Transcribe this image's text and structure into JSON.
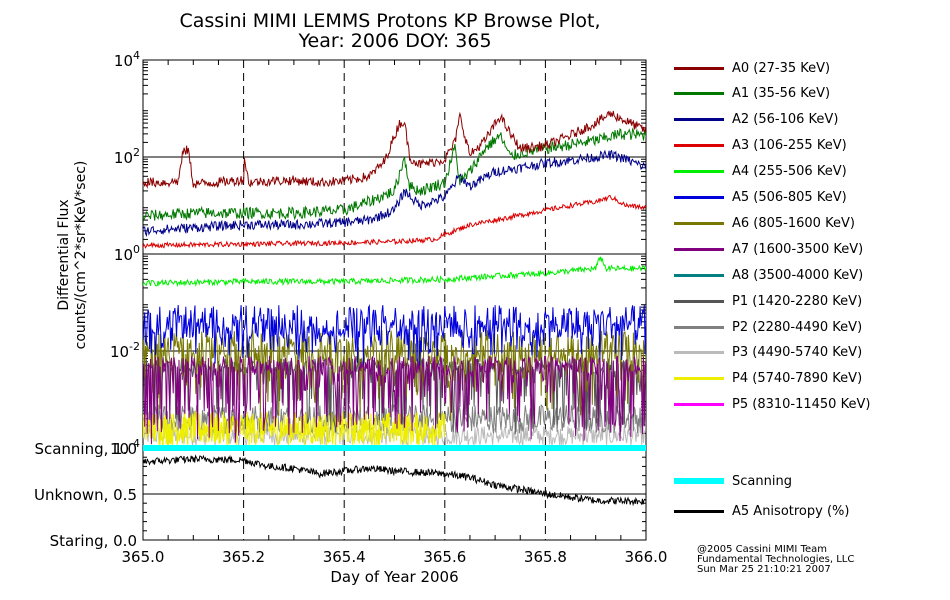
{
  "title_line1": "Cassini MIMI LEMMS Protons KP Browse Plot,",
  "title_line2": "Year: 2006 DOY: 365",
  "credit": [
    "@2005 Cassini MIMI Team",
    "Fundamental Technologies, LLC",
    "Sun Mar 25 21:10:21 2007"
  ],
  "chart_data": [
    {
      "type": "line",
      "title": "Cassini MIMI LEMMS Protons KP Browse Plot, Year: 2006 DOY: 365",
      "xlabel": "",
      "ylabel": [
        "Differential Flux",
        "counts/(cm^2*sr*KeV*sec)"
      ],
      "yscale": "log",
      "xlim": [
        365.0,
        366.0
      ],
      "ylim": [
        0.0001,
        10000
      ],
      "ytick_labels": [
        {
          "value": 10000,
          "base": "10",
          "exp": "4"
        },
        {
          "value": 100,
          "base": "10",
          "exp": "2"
        },
        {
          "value": 1,
          "base": "10",
          "exp": "0"
        },
        {
          "value": 0.01,
          "base": "10",
          "exp": "-2"
        },
        {
          "value": 0.0001,
          "base": "10",
          "exp": "-4"
        }
      ],
      "series": [
        {
          "name": "A0 (27-35 KeV)",
          "color": "#8b0000",
          "x": [
            365.0,
            365.05,
            365.07,
            365.08,
            365.09,
            365.1,
            365.15,
            365.2,
            365.2,
            365.21,
            365.25,
            365.3,
            365.35,
            365.4,
            365.45,
            365.48,
            365.51,
            365.52,
            365.53,
            365.55,
            365.58,
            365.6,
            365.62,
            365.63,
            365.65,
            365.68,
            365.71,
            365.73,
            365.75,
            365.8,
            365.85,
            365.9,
            365.93,
            365.96,
            366.0
          ],
          "values": [
            30,
            30,
            32,
            130,
            140,
            28,
            30,
            34,
            120,
            30,
            32,
            33,
            30,
            32,
            40,
            80,
            500,
            520,
            100,
            70,
            80,
            90,
            200,
            700,
            110,
            220,
            700,
            300,
            150,
            170,
            280,
            500,
            800,
            550,
            350
          ],
          "noise": 0.1
        },
        {
          "name": "A1 (35-56 KeV)",
          "color": "#007800",
          "x": [
            365.0,
            365.1,
            365.2,
            365.3,
            365.4,
            365.45,
            365.5,
            365.52,
            365.53,
            365.55,
            365.6,
            365.62,
            365.63,
            365.65,
            365.68,
            365.71,
            365.73,
            365.75,
            365.8,
            365.85,
            365.9,
            365.95,
            366.0
          ],
          "values": [
            6,
            7,
            7,
            7,
            8,
            12,
            20,
            100,
            25,
            20,
            30,
            160,
            30,
            50,
            150,
            280,
            100,
            120,
            150,
            180,
            220,
            300,
            280
          ],
          "noise": 0.12
        },
        {
          "name": "A2 (56-106 KeV)",
          "color": "#00008b",
          "x": [
            365.0,
            365.1,
            365.2,
            365.3,
            365.4,
            365.45,
            365.5,
            365.52,
            365.55,
            365.6,
            365.63,
            365.65,
            365.7,
            365.75,
            365.8,
            365.85,
            365.9,
            365.93,
            365.96,
            366.0
          ],
          "values": [
            3,
            3.5,
            4,
            4,
            4.5,
            5,
            8,
            20,
            10,
            15,
            40,
            25,
            50,
            60,
            75,
            85,
            100,
            110,
            90,
            60
          ],
          "noise": 0.1
        },
        {
          "name": "A3 (106-255 KeV)",
          "color": "#dc0000",
          "x": [
            365.0,
            365.2,
            365.4,
            365.5,
            365.58,
            365.6,
            365.65,
            365.7,
            365.8,
            365.85,
            365.9,
            365.93,
            365.96,
            366.0
          ],
          "values": [
            1.5,
            1.6,
            1.7,
            1.8,
            2.0,
            2.5,
            4,
            5,
            8,
            10,
            12,
            15,
            10,
            9
          ],
          "noise": 0.05
        },
        {
          "name": "A4 (255-506 KeV)",
          "color": "#00ee00",
          "x": [
            365.0,
            365.2,
            365.4,
            365.6,
            365.7,
            365.8,
            365.9,
            365.91,
            365.92,
            366.0
          ],
          "values": [
            0.25,
            0.27,
            0.27,
            0.3,
            0.35,
            0.4,
            0.5,
            0.9,
            0.5,
            0.5
          ],
          "noise": 0.06
        },
        {
          "name": "A5 (506-805 KeV)",
          "color": "#0000dc",
          "x": [
            365.0,
            366.0
          ],
          "values": [
            0.04,
            0.04
          ],
          "spike_down": 0.6,
          "noise": 0.35
        },
        {
          "name": "A6 (805-1600 KeV)",
          "color": "#787800",
          "x": [
            365.0,
            366.0
          ],
          "values": [
            0.012,
            0.012
          ],
          "spike_down": 1.2,
          "noise": 0.35
        },
        {
          "name": "A7 (1600-3500 KeV)",
          "color": "#800080",
          "x": [
            365.0,
            366.0
          ],
          "values": [
            0.005,
            0.005
          ],
          "spike_down": 1.5,
          "noise": 0.2
        },
        {
          "name": "A8 (3500-4000 KeV)",
          "color": "#008080",
          "x": [],
          "values": []
        },
        {
          "name": "P1 (1420-2280 KeV)",
          "color": "#555555",
          "x": [
            365.0,
            366.0
          ],
          "values": [
            0.005,
            0.005
          ],
          "spike_down": 1.3,
          "noise": 0.15
        },
        {
          "name": "P2 (2280-4490 KeV)",
          "color": "#808080",
          "x": [
            365.0,
            366.0
          ],
          "values": [
            0.0004,
            0.0004
          ],
          "noise": 0.3
        },
        {
          "name": "P3 (4490-5740 KeV)",
          "color": "#bbbbbb",
          "x": [
            365.0,
            366.0
          ],
          "values": [
            0.00018,
            0.00018
          ],
          "noise": 0.2
        },
        {
          "name": "P4 (5740-7890 KeV)",
          "color": "#eeee00",
          "x": [
            365.0,
            365.6
          ],
          "values": [
            0.00025,
            0.00025
          ],
          "noise": 0.35
        },
        {
          "name": "P5 (8310-11450 KeV)",
          "color": "#ff00ff",
          "x": [],
          "values": []
        }
      ]
    },
    {
      "type": "line",
      "xlabel": "Day of Year 2006",
      "xlim": [
        365.0,
        366.0
      ],
      "ylim": [
        0.0,
        1.0
      ],
      "xtick_labels": [
        "365.0",
        "365.2",
        "365.4",
        "365.6",
        "365.8",
        "366.0"
      ],
      "ytick_labels": [
        {
          "value": 1.0,
          "label": "Scanning, 1.0"
        },
        {
          "value": 0.5,
          "label": "Unknown, 0.5"
        },
        {
          "value": 0.0,
          "label": "Staring, 0.0"
        }
      ],
      "series": [
        {
          "name": "Scanning",
          "color": "#00ffff",
          "x": [
            365.0,
            366.0
          ],
          "values": [
            1.0,
            1.0
          ]
        },
        {
          "name": "A5 Anisotropy (%)",
          "color": "#000000",
          "x": [
            365.0,
            365.1,
            365.2,
            365.25,
            365.3,
            365.35,
            365.45,
            365.5,
            365.6,
            365.65,
            365.7,
            365.8,
            365.9,
            366.0
          ],
          "values": [
            0.85,
            0.88,
            0.87,
            0.8,
            0.78,
            0.72,
            0.78,
            0.75,
            0.72,
            0.68,
            0.6,
            0.5,
            0.43,
            0.42
          ],
          "noise": 0.04
        }
      ]
    }
  ]
}
